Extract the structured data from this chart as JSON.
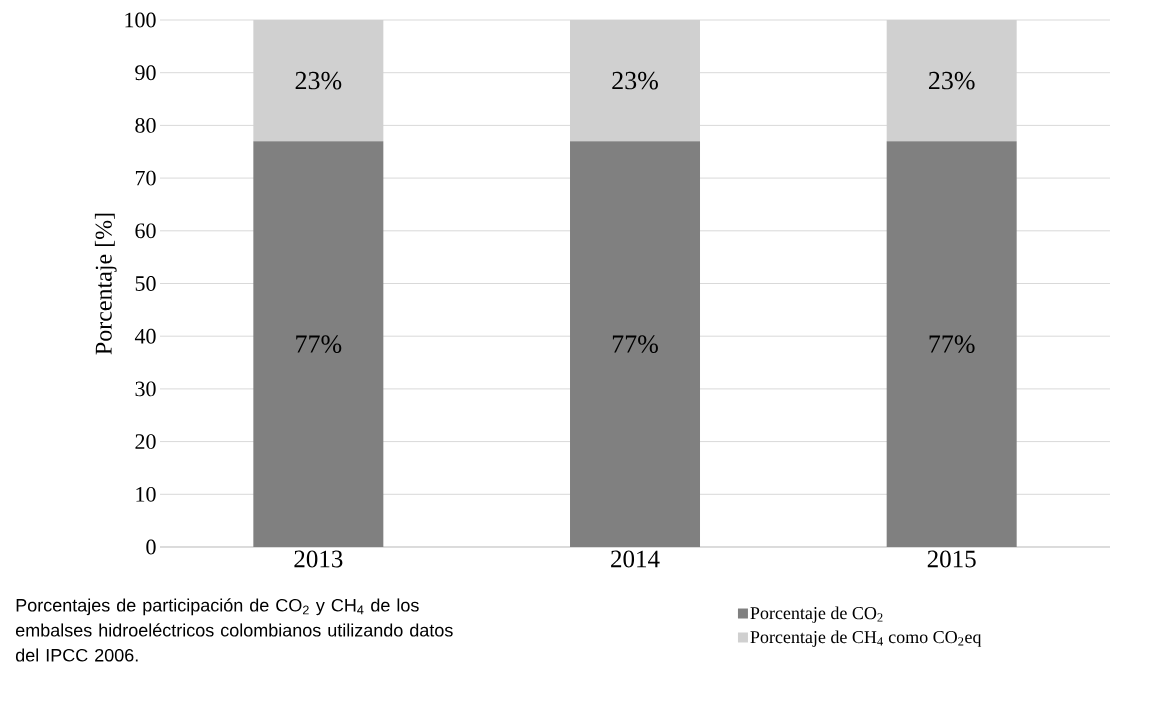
{
  "chart_data": {
    "type": "bar",
    "stacked": true,
    "categories": [
      "2013",
      "2014",
      "2015"
    ],
    "series": [
      {
        "name": "Porcentaje de CO$_{2}$",
        "color": "#808080",
        "values": [
          77,
          77,
          77
        ],
        "value_labels": [
          "77%",
          "77%",
          "77%"
        ]
      },
      {
        "name": "Porcentaje de CH$_{4}$ como CO$_{2}$eq",
        "color": "#d0d0d0",
        "values": [
          23,
          23,
          23
        ],
        "value_labels": [
          "23%",
          "23%",
          "23%"
        ]
      }
    ],
    "ylabel": "Porcentaje [%]",
    "ylim": [
      0,
      100
    ],
    "yticks": [
      0,
      10,
      20,
      30,
      40,
      50,
      60,
      70,
      80,
      90,
      100
    ],
    "grid": "y",
    "legend": "bottom right",
    "annotations": [
      "Porcentajes de participación de CO$_{2}$ y CH$_{4}$ de los embalses hidroeléctricos colombianos utilizando datos del IPCC 2006."
    ]
  }
}
